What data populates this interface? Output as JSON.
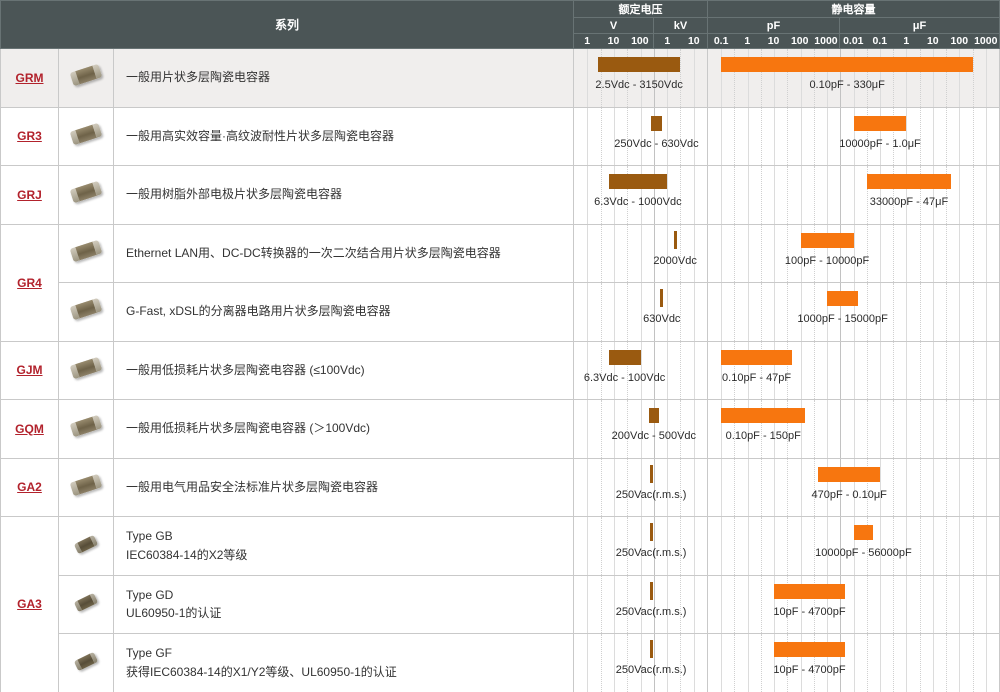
{
  "header": {
    "series_col": "系列",
    "voltage_group": "额定电压",
    "capacitance_group": "静电容量",
    "voltage_units": {
      "v": "V",
      "kv": "kV"
    },
    "cap_units": {
      "pf": "pF",
      "uf": "μF"
    },
    "v_ticks": [
      "1",
      "10",
      "100"
    ],
    "kv_ticks": [
      "1",
      "10"
    ],
    "pf_ticks": [
      "0.1",
      "1",
      "10",
      "100",
      "1000"
    ],
    "uf_ticks": [
      "0.01",
      "0.1",
      "1",
      "10",
      "100",
      "1000"
    ]
  },
  "colors": {
    "header_bg": "#4b5556",
    "voltage_bar": "#9a5a10",
    "capacitance_bar": "#f7760f",
    "series_link": "#b2222c",
    "row_highlight": "#f0eeed"
  },
  "chart_data": {
    "type": "bar",
    "scale": "log10",
    "orientation": "horizontal-range",
    "voltage_log10_domain_V": [
      -0.5,
      4.5
    ],
    "capacitance_log10_domain_pF": [
      -1.5,
      9.5
    ],
    "voltage_unit_boundary_decade": 2.5,
    "capacitance_unit_boundary_decade": 3.5,
    "rows": [
      {
        "series": "GRM",
        "description": "一般用片状多层陶瓷电容器",
        "voltage_V": {
          "min": 2.5,
          "max": 3150,
          "label": "2.5Vdc - 3150Vdc"
        },
        "capacitance_pF": {
          "min": 0.1,
          "max": 330000000,
          "label": "0.10pF - 330μF"
        }
      },
      {
        "series": "GR3",
        "description": "一般用高实效容量·高纹波耐性片状多层陶瓷电容器",
        "voltage_V": {
          "min": 250,
          "max": 630,
          "label": "250Vdc - 630Vdc"
        },
        "capacitance_pF": {
          "min": 10000,
          "max": 1000000,
          "label": "10000pF - 1.0μF"
        }
      },
      {
        "series": "GRJ",
        "description": "一般用树脂外部电极片状多层陶瓷电容器",
        "voltage_V": {
          "min": 6.3,
          "max": 1000,
          "label": "6.3Vdc - 1000Vdc"
        },
        "capacitance_pF": {
          "min": 33000,
          "max": 47000000,
          "label": "33000pF - 47μF"
        }
      },
      {
        "series": "GR4",
        "description": "Ethernet LAN用、DC-DC转换器的一次二次结合用片状多层陶瓷电容器",
        "voltage_V": {
          "min": 2000,
          "max": 2000,
          "label": "2000Vdc"
        },
        "capacitance_pF": {
          "min": 100,
          "max": 10000,
          "label": "100pF - 10000pF"
        }
      },
      {
        "description": "G-Fast, xDSL的分离器电路用片状多层陶瓷电容器",
        "voltage_V": {
          "min": 630,
          "max": 630,
          "label": "630Vdc"
        },
        "capacitance_pF": {
          "min": 1000,
          "max": 15000,
          "label": "1000pF - 15000pF"
        }
      },
      {
        "series": "GJM",
        "description": "一般用低损耗片状多层陶瓷电容器 (≤100Vdc)",
        "voltage_V": {
          "min": 6.3,
          "max": 100,
          "label": "6.3Vdc - 100Vdc"
        },
        "capacitance_pF": {
          "min": 0.1,
          "max": 47,
          "label": "0.10pF - 47pF"
        }
      },
      {
        "series": "GQM",
        "description": "一般用低损耗片状多层陶瓷电容器 (＞100Vdc)",
        "voltage_V": {
          "min": 200,
          "max": 500,
          "label": "200Vdc - 500Vdc"
        },
        "capacitance_pF": {
          "min": 0.1,
          "max": 150,
          "label": "0.10pF - 150pF"
        }
      },
      {
        "series": "GA2",
        "description": "一般用电气用品安全法标准片状多层陶瓷电容器",
        "voltage_V": {
          "min": 250,
          "max": 250,
          "label": "250Vac(r.m.s.)"
        },
        "capacitance_pF": {
          "min": 470,
          "max": 100000,
          "label": "470pF - 0.10μF"
        }
      },
      {
        "series": "GA3",
        "description": "Type GB",
        "description2": "IEC60384-14的X2等级",
        "voltage_V": {
          "min": 250,
          "max": 250,
          "label": "250Vac(r.m.s.)"
        },
        "capacitance_pF": {
          "min": 10000,
          "max": 56000,
          "label": "10000pF - 56000pF"
        }
      },
      {
        "description": "Type GD",
        "description2": "UL60950-1的认证",
        "voltage_V": {
          "min": 250,
          "max": 250,
          "label": "250Vac(r.m.s.)"
        },
        "capacitance_pF": {
          "min": 10,
          "max": 4700,
          "label": "10pF - 4700pF"
        }
      },
      {
        "description": "Type GF",
        "description2": "获得IEC60384-14的X1/Y2等级、UL60950-1的认证",
        "voltage_V": {
          "min": 250,
          "max": 250,
          "label": "250Vac(r.m.s.)"
        },
        "capacitance_pF": {
          "min": 10,
          "max": 4700,
          "label": "10pF - 4700pF"
        }
      }
    ]
  }
}
